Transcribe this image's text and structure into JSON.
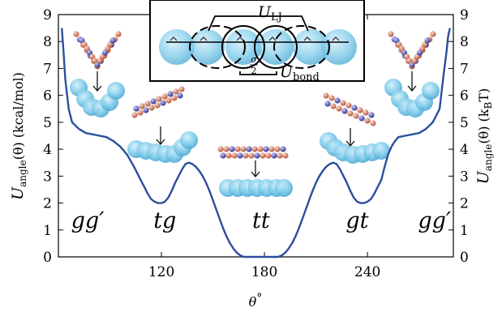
{
  "chart_data": {
    "type": "line",
    "xlabel_main": "θ",
    "xlabel_sup": "°",
    "ylabel_left": {
      "main": "U",
      "sub": "angle",
      "rest": "(θ)  (kcal/mol)"
    },
    "ylabel_right": {
      "main": "U",
      "sub": "angle",
      "rest": "(θ)  (k",
      "sub2": "B",
      "rest2": "T)"
    },
    "xlim": [
      60,
      290
    ],
    "ylim": [
      0,
      9
    ],
    "xticks": [
      120,
      180,
      240
    ],
    "yticks": [
      0,
      1,
      2,
      3,
      4,
      5,
      6,
      7,
      8,
      9
    ],
    "yticks_right": [
      0,
      1,
      2,
      3,
      4,
      5,
      6,
      7,
      8,
      9
    ],
    "line_color": "#2b4f9e",
    "series": [
      {
        "x": [
          62,
          63,
          64,
          66,
          68,
          72,
          76,
          80,
          84,
          88,
          92,
          96,
          100,
          104,
          108,
          110,
          112,
          114,
          116,
          118,
          120,
          122,
          124,
          126,
          128,
          130,
          132,
          134,
          136,
          138,
          140,
          142,
          144,
          146,
          148,
          150,
          152,
          154,
          156,
          158,
          160,
          162,
          164,
          166,
          168,
          170,
          172,
          174,
          176,
          178,
          180,
          182,
          184,
          186,
          188,
          190,
          192,
          194,
          196,
          198,
          200,
          202,
          204,
          206,
          208,
          210,
          212,
          214,
          216,
          218,
          220,
          222,
          224,
          226,
          228,
          230,
          232,
          234,
          236,
          238,
          240,
          242,
          244,
          246,
          248,
          250,
          252,
          254,
          256,
          258,
          262,
          266,
          270,
          274,
          278,
          282,
          284,
          286,
          287,
          288
        ],
        "y": [
          8.5,
          7.6,
          6.6,
          5.5,
          5.0,
          4.75,
          4.6,
          4.55,
          4.5,
          4.45,
          4.3,
          4.1,
          3.8,
          3.35,
          2.85,
          2.6,
          2.35,
          2.15,
          2.05,
          2.0,
          2.0,
          2.05,
          2.2,
          2.45,
          2.75,
          3.0,
          3.25,
          3.45,
          3.5,
          3.45,
          3.35,
          3.2,
          3.0,
          2.75,
          2.45,
          2.1,
          1.75,
          1.4,
          1.05,
          0.75,
          0.5,
          0.3,
          0.15,
          0.05,
          0.0,
          0.0,
          0.0,
          0.0,
          0.0,
          0.0,
          0.0,
          0.0,
          0.0,
          0.0,
          0.0,
          0.05,
          0.15,
          0.3,
          0.5,
          0.75,
          1.05,
          1.4,
          1.75,
          2.1,
          2.45,
          2.75,
          3.0,
          3.2,
          3.35,
          3.45,
          3.5,
          3.45,
          3.25,
          3.0,
          2.75,
          2.45,
          2.2,
          2.05,
          2.0,
          2.0,
          2.05,
          2.15,
          2.35,
          2.6,
          2.85,
          3.35,
          3.8,
          4.1,
          4.3,
          4.45,
          4.5,
          4.55,
          4.6,
          4.75,
          5.0,
          5.5,
          6.6,
          7.6,
          8.2,
          8.5
        ]
      }
    ],
    "annotations": [
      {
        "label": "gg′",
        "x": 77,
        "y": 1.08
      },
      {
        "label": "tg",
        "x": 122,
        "y": 1.08
      },
      {
        "label": "tt",
        "x": 178,
        "y": 1.08
      },
      {
        "label": "gt",
        "x": 234,
        "y": 1.08
      },
      {
        "label": "gg′",
        "x": 279,
        "y": 1.08
      }
    ],
    "inset": {
      "label_lj_main": "U",
      "label_lj_sub": "LJ",
      "label_bond_main": "U",
      "label_bond_sub": "bond",
      "label_sigma": "σ",
      "label_two": "2"
    }
  }
}
